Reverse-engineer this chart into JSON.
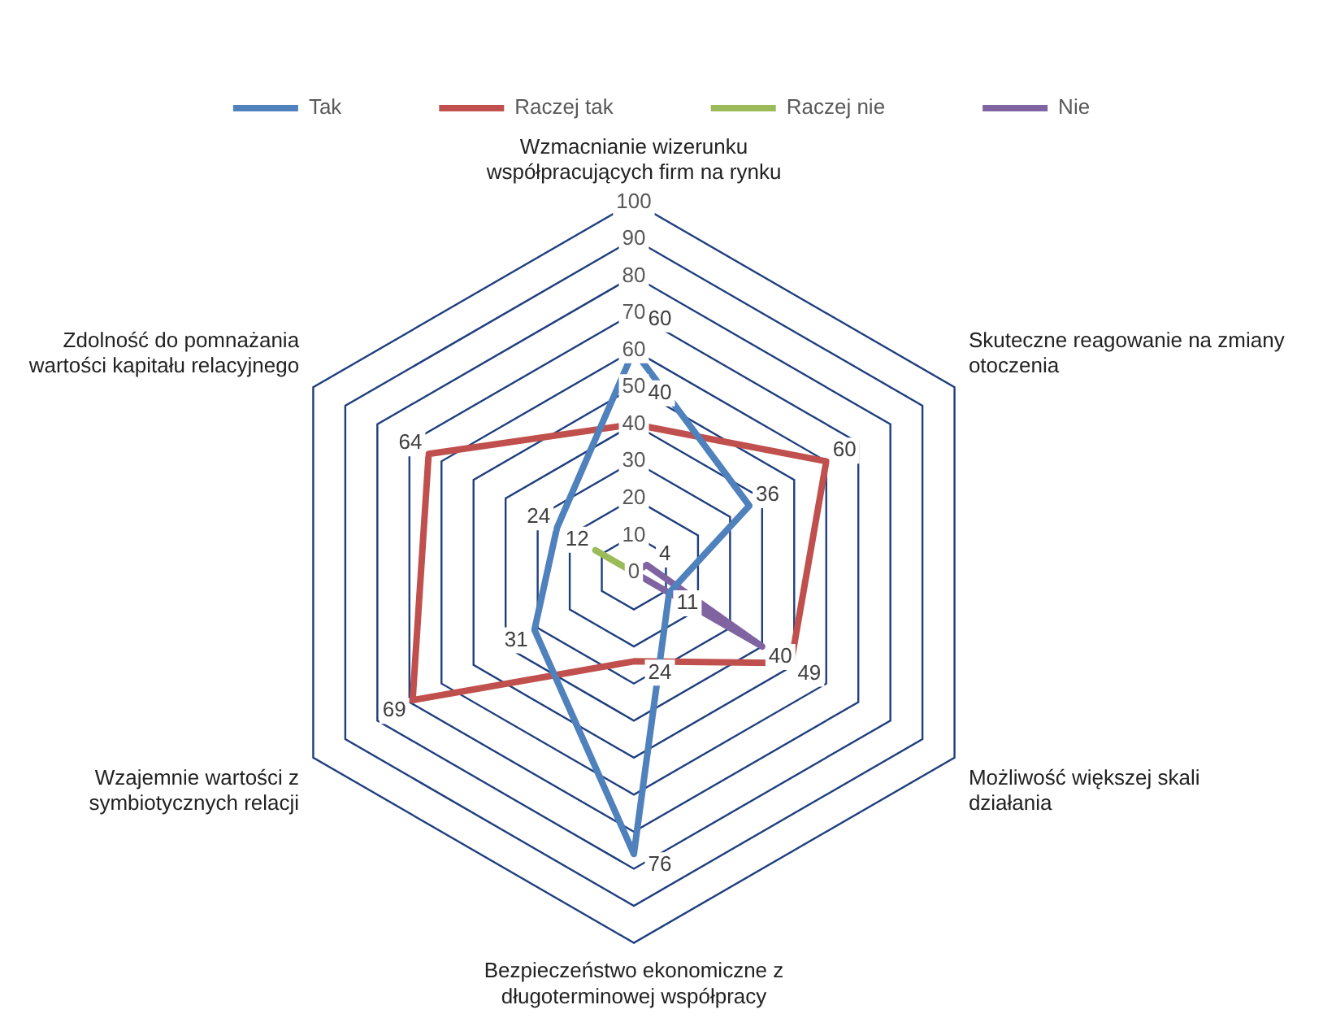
{
  "chart_data": {
    "type": "radar",
    "categories": [
      "Wzmacnianie wizerunku współpracujących firm na rynku",
      "Skuteczne reagowanie na zmiany otoczenia",
      "Możliwość większej skali działania",
      "Bezpieczeństwo ekonomiczne z długoterminowej współpracy",
      "Wzajemnie wartości z symbiotycznych relacji",
      "Zdolność do pomnażania wartości kapitału relacyjnego"
    ],
    "series": [
      {
        "name": "Tak",
        "color": "#4f81bd",
        "values": [
          60,
          36,
          11,
          76,
          31,
          24
        ],
        "value_labels": [
          "60",
          "36",
          "11",
          "76",
          "31",
          "24"
        ]
      },
      {
        "name": "Raczej tak",
        "color": "#c0504d",
        "values": [
          40,
          60,
          49,
          24,
          69,
          64
        ],
        "value_labels": [
          "40",
          "60",
          "49",
          "24",
          "69",
          "64"
        ]
      },
      {
        "name": "Raczej nie",
        "color": "#9bbb59",
        "values": [
          0,
          0,
          0,
          0,
          0,
          12
        ],
        "value_labels": [
          null,
          null,
          null,
          null,
          null,
          "12"
        ]
      },
      {
        "name": "Nie",
        "color": "#8064a2",
        "values": [
          0,
          4,
          40,
          0,
          0,
          0
        ],
        "value_labels": [
          null,
          "4",
          "40",
          null,
          null,
          null
        ]
      }
    ],
    "ylim": [
      0,
      100
    ],
    "yticks": [
      0,
      10,
      20,
      30,
      40,
      50,
      60,
      70,
      80,
      90,
      100
    ],
    "legend": "top",
    "marker": "none",
    "grid": true
  }
}
